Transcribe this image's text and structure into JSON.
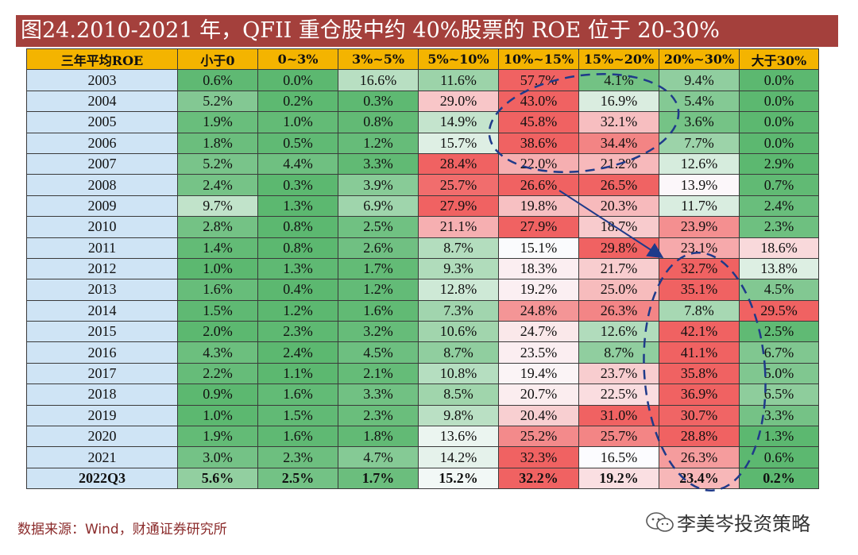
{
  "title": "图24.2010-2021 年，QFII 重仓股中约 40%股票的 ROE 位于 20-30%",
  "table": {
    "headers": [
      "三年平均ROE",
      "小于0",
      "0~3%",
      "3%~5%",
      "5%~10%",
      "10%~15%",
      "15%~20%",
      "20%~30%",
      "大于30%"
    ],
    "rows": [
      {
        "year": "2003",
        "values": [
          "0.6%",
          "0.0%",
          "16.6%",
          "11.6%",
          "57.7%",
          "4.1%",
          "9.4%",
          "0.0%"
        ]
      },
      {
        "year": "2004",
        "values": [
          "5.2%",
          "0.2%",
          "0.3%",
          "29.0%",
          "43.0%",
          "16.9%",
          "5.4%",
          "0.0%"
        ]
      },
      {
        "year": "2005",
        "values": [
          "1.9%",
          "1.0%",
          "0.8%",
          "14.9%",
          "45.8%",
          "32.1%",
          "3.6%",
          "0.0%"
        ]
      },
      {
        "year": "2006",
        "values": [
          "1.8%",
          "0.5%",
          "1.2%",
          "15.7%",
          "38.6%",
          "34.4%",
          "7.7%",
          "0.0%"
        ]
      },
      {
        "year": "2007",
        "values": [
          "5.2%",
          "4.4%",
          "3.3%",
          "28.4%",
          "22.0%",
          "21.2%",
          "12.6%",
          "2.9%"
        ]
      },
      {
        "year": "2008",
        "values": [
          "2.4%",
          "0.3%",
          "3.9%",
          "25.7%",
          "26.6%",
          "26.5%",
          "13.9%",
          "0.7%"
        ]
      },
      {
        "year": "2009",
        "values": [
          "9.7%",
          "1.3%",
          "6.9%",
          "27.9%",
          "19.8%",
          "20.3%",
          "11.7%",
          "2.4%"
        ]
      },
      {
        "year": "2010",
        "values": [
          "2.8%",
          "0.8%",
          "2.5%",
          "21.1%",
          "27.9%",
          "18.7%",
          "23.9%",
          "2.3%"
        ]
      },
      {
        "year": "2011",
        "values": [
          "1.4%",
          "0.8%",
          "2.6%",
          "8.7%",
          "15.1%",
          "29.8%",
          "23.1%",
          "18.6%"
        ]
      },
      {
        "year": "2012",
        "values": [
          "1.0%",
          "1.3%",
          "1.7%",
          "9.3%",
          "18.3%",
          "21.7%",
          "32.7%",
          "13.8%"
        ]
      },
      {
        "year": "2013",
        "values": [
          "1.6%",
          "0.4%",
          "1.2%",
          "12.8%",
          "19.2%",
          "25.0%",
          "35.1%",
          "4.5%"
        ]
      },
      {
        "year": "2014",
        "values": [
          "1.5%",
          "1.2%",
          "1.6%",
          "7.3%",
          "24.8%",
          "26.3%",
          "7.8%",
          "29.5%"
        ]
      },
      {
        "year": "2015",
        "values": [
          "2.0%",
          "2.3%",
          "3.2%",
          "10.6%",
          "24.7%",
          "12.6%",
          "42.1%",
          "2.5%"
        ]
      },
      {
        "year": "2016",
        "values": [
          "4.3%",
          "2.4%",
          "4.5%",
          "8.7%",
          "23.5%",
          "8.7%",
          "41.1%",
          "6.7%"
        ]
      },
      {
        "year": "2017",
        "values": [
          "2.2%",
          "1.1%",
          "2.1%",
          "10.8%",
          "19.4%",
          "23.7%",
          "35.8%",
          "5.0%"
        ]
      },
      {
        "year": "2018",
        "values": [
          "0.9%",
          "1.6%",
          "3.3%",
          "8.5%",
          "20.7%",
          "22.5%",
          "36.9%",
          "6.5%"
        ]
      },
      {
        "year": "2019",
        "values": [
          "1.0%",
          "1.5%",
          "2.3%",
          "9.8%",
          "20.4%",
          "31.0%",
          "30.7%",
          "3.3%"
        ]
      },
      {
        "year": "2020",
        "values": [
          "1.9%",
          "1.6%",
          "1.8%",
          "13.6%",
          "25.2%",
          "25.7%",
          "28.8%",
          "1.3%"
        ]
      },
      {
        "year": "2021",
        "values": [
          "3.0%",
          "2.3%",
          "4.7%",
          "14.2%",
          "32.3%",
          "16.5%",
          "26.3%",
          "0.6%"
        ]
      },
      {
        "year": "2022Q3",
        "values": [
          "5.6%",
          "2.5%",
          "1.7%",
          "15.2%",
          "32.2%",
          "19.2%",
          "23.4%",
          "0.2%"
        ]
      }
    ]
  },
  "source": "数据来源：Wind，财通证券研究所",
  "watermark": "李美岑投资策略",
  "colors": {
    "title_bg": "#a4403c",
    "header_bg": "#f4b400",
    "year_bg": "#cfe4f5",
    "annotation": "#1f3a8a",
    "source_text": "#8b2b2b"
  },
  "icons": {
    "watermark_logo": "wechat-icon"
  }
}
